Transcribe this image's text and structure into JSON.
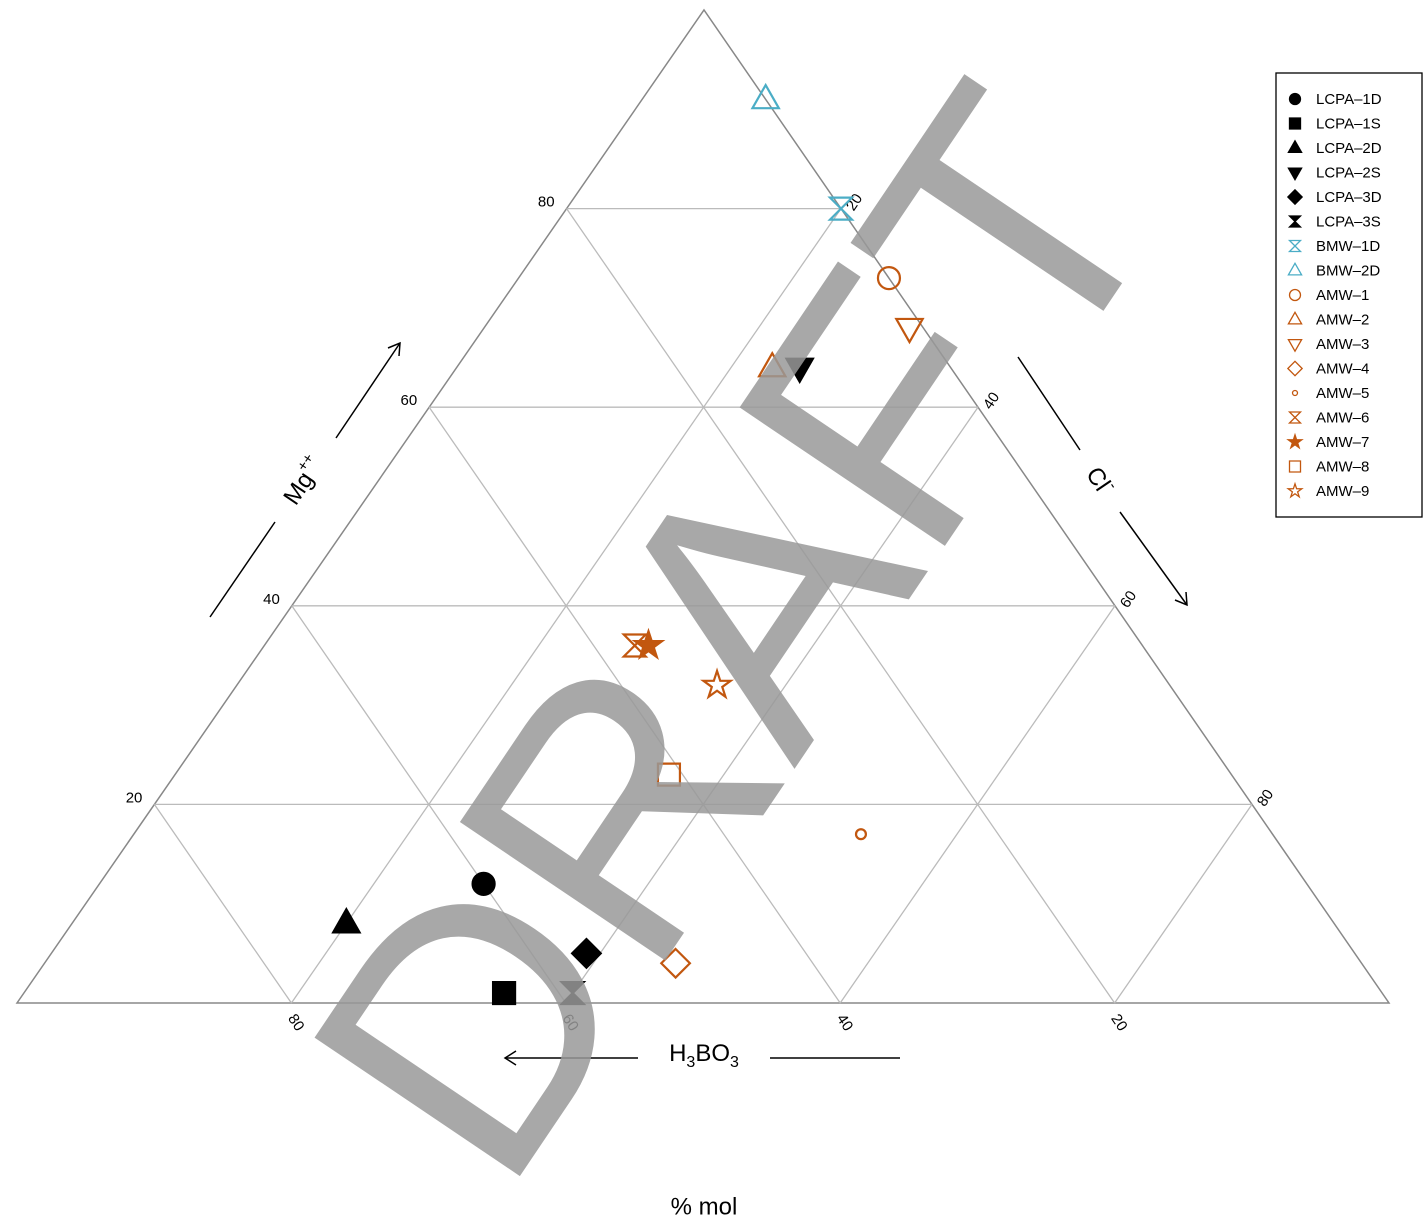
{
  "chart_data": {
    "type": "ternary",
    "axis_labels": {
      "mg": [
        "Mg",
        "++"
      ],
      "cl": [
        "Cl",
        "-"
      ],
      "h3bo3": [
        "H",
        "3",
        "BO",
        "3"
      ]
    },
    "xlabel": "% mol",
    "watermark": "DRAFT",
    "ticks": {
      "mg": [
        20,
        40,
        60,
        80
      ],
      "cl": [
        20,
        40,
        60,
        80
      ],
      "h3bo3": [
        20,
        40,
        60,
        80
      ]
    },
    "lim": [
      0,
      100
    ],
    "grid": true,
    "legend": "top-right",
    "series": [
      {
        "name": "LCPA–1D",
        "color": "#000000",
        "shape": "circle",
        "filled": true,
        "mg": 12,
        "cl": 28,
        "h3bo3": 60
      },
      {
        "name": "LCPA–1S",
        "color": "#000000",
        "shape": "square",
        "filled": true,
        "mg": 1,
        "cl": 35,
        "h3bo3": 64
      },
      {
        "name": "LCPA–2D",
        "color": "#000000",
        "shape": "triangle",
        "filled": true,
        "mg": 8,
        "cl": 20,
        "h3bo3": 72
      },
      {
        "name": "LCPA–2S",
        "color": "#000000",
        "shape": "triangle-down",
        "filled": true,
        "mg": 64,
        "cl": 25,
        "h3bo3": 11
      },
      {
        "name": "LCPA–3D",
        "color": "#000000",
        "shape": "diamond",
        "filled": true,
        "mg": 5,
        "cl": 39,
        "h3bo3": 56
      },
      {
        "name": "LCPA–3S",
        "color": "#000000",
        "shape": "hourglass",
        "filled": true,
        "mg": 1,
        "cl": 40,
        "h3bo3": 59
      },
      {
        "name": "BMW–1D",
        "color": "#4badc6",
        "shape": "hourglass",
        "filled": false,
        "mg": 80,
        "cl": 20,
        "h3bo3": 0
      },
      {
        "name": "BMW–2D",
        "color": "#4badc6",
        "shape": "triangle",
        "filled": false,
        "mg": 91,
        "cl": 9,
        "h3bo3": 0
      },
      {
        "name": "AMW–1",
        "color": "#c2570f",
        "shape": "circle",
        "filled": false,
        "mg": 73,
        "cl": 27,
        "h3bo3": 0
      },
      {
        "name": "AMW–2",
        "color": "#c2570f",
        "shape": "triangle",
        "filled": false,
        "mg": 64,
        "cl": 23,
        "h3bo3": 13
      },
      {
        "name": "AMW–3",
        "color": "#c2570f",
        "shape": "triangle-down",
        "filled": false,
        "mg": 68,
        "cl": 31,
        "h3bo3": 1
      },
      {
        "name": "AMW–4",
        "color": "#c2570f",
        "shape": "diamond",
        "filled": false,
        "mg": 4,
        "cl": 46,
        "h3bo3": 50
      },
      {
        "name": "AMW–5",
        "color": "#c2570f",
        "shape": "circle-small",
        "filled": false,
        "mg": 17,
        "cl": 53,
        "h3bo3": 30
      },
      {
        "name": "AMW–6",
        "color": "#c2570f",
        "shape": "hourglass",
        "filled": false,
        "mg": 36,
        "cl": 27,
        "h3bo3": 37
      },
      {
        "name": "AMW–7",
        "color": "#c2570f",
        "shape": "star",
        "filled": true,
        "mg": 36,
        "cl": 28,
        "h3bo3": 36
      },
      {
        "name": "AMW–8",
        "color": "#c2570f",
        "shape": "square",
        "filled": false,
        "mg": 23,
        "cl": 36,
        "h3bo3": 41
      },
      {
        "name": "AMW–9",
        "color": "#c2570f",
        "shape": "star",
        "filled": false,
        "mg": 32,
        "cl": 35,
        "h3bo3": 33
      }
    ]
  }
}
